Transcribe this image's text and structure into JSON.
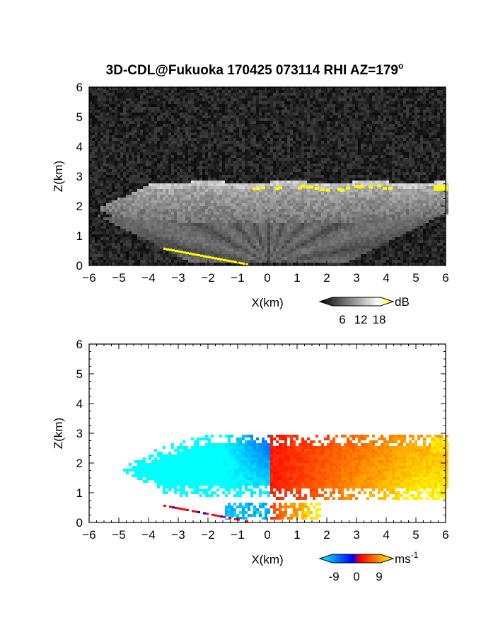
{
  "title": "3D-CDL@Fukuoka 170425 073114 RHI AZ=179",
  "title_sup": "o",
  "chart_data": [
    {
      "type": "heatmap",
      "panel": "backscatter",
      "xlabel": "X(km)",
      "ylabel": "Z(km)",
      "xlim": [
        -6,
        6
      ],
      "ylim": [
        0,
        6
      ],
      "x_ticks": [
        "-6",
        "-5",
        "-4",
        "-3",
        "-2",
        "-1",
        "0",
        "1",
        "2",
        "3",
        "4",
        "5",
        "6"
      ],
      "y_ticks": [
        "0",
        "1",
        "2",
        "3",
        "4",
        "5",
        "6"
      ],
      "colorbar": {
        "unit": "dB",
        "ticks": [
          "6",
          "12",
          "18"
        ],
        "range": [
          0,
          20
        ],
        "colors": [
          "#000000",
          "#ffffff",
          "#ffff00"
        ]
      },
      "features": {
        "cloud_layer": {
          "x": [
            -5.8,
            6
          ],
          "z": [
            1.3,
            2.8
          ],
          "value_db": 10
        },
        "cloud_top_saturated": {
          "x": [
            -0.5,
            6
          ],
          "z": [
            2.55,
            2.85
          ]
        },
        "ground_echo": {
          "x": [
            -3.5,
            -0.7
          ],
          "z_start": 0.55,
          "z_end": 0.02
        }
      }
    },
    {
      "type": "heatmap",
      "panel": "doppler_velocity",
      "xlabel": "X(km)",
      "ylabel": "Z(km)",
      "xlim": [
        -6,
        6
      ],
      "ylim": [
        0,
        6
      ],
      "x_ticks": [
        "-6",
        "-5",
        "-4",
        "-3",
        "-2",
        "-1",
        "0",
        "1",
        "2",
        "3",
        "4",
        "5",
        "6"
      ],
      "y_ticks": [
        "0",
        "1",
        "2",
        "3",
        "4",
        "5",
        "6"
      ],
      "colorbar": {
        "unit": "ms",
        "unit_sup": "-1",
        "ticks": [
          "-9",
          "0",
          "9"
        ],
        "range": [
          -10,
          10
        ],
        "colors": [
          "#00ffff",
          "#0000ff",
          "#ff0000",
          "#ffff00"
        ]
      },
      "features": {
        "negative_region": {
          "x": [
            -5,
            0
          ],
          "z": [
            0.8,
            3.0
          ],
          "velocity": -6
        },
        "positive_region": {
          "x": [
            0,
            6
          ],
          "z": [
            0.7,
            3.0
          ],
          "velocity": 6
        },
        "lower_echo": {
          "x": [
            -3.5,
            1.5
          ],
          "z": [
            0.02,
            0.6
          ]
        }
      }
    }
  ]
}
